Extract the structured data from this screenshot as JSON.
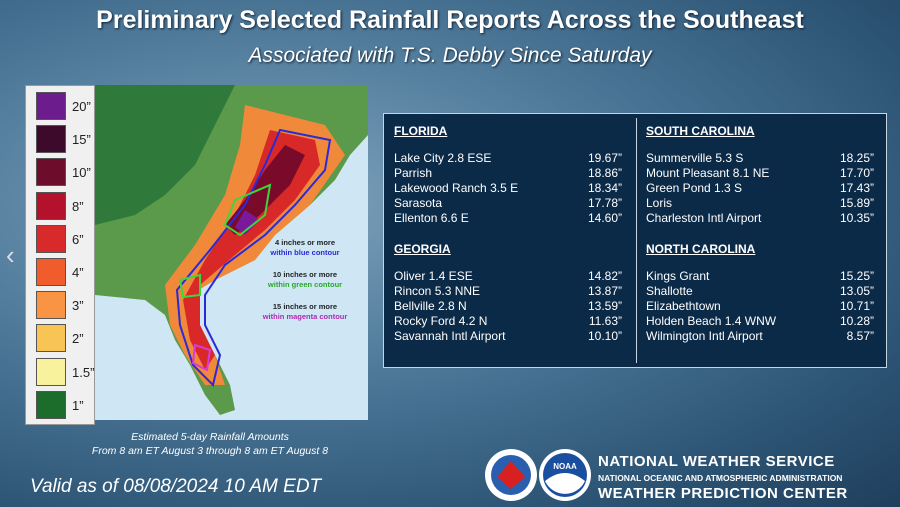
{
  "header": {
    "title": "Preliminary Selected Rainfall Reports Across the Southeast",
    "subtitle": "Associated with T.S. Debby Since Saturday"
  },
  "legend": [
    "20”",
    "15”",
    "10”",
    "8”",
    "6”",
    "4”",
    "3”",
    "2”",
    "1.5”",
    "1”"
  ],
  "map_notes": [
    [
      "4 inches or more",
      "within blue contour"
    ],
    [
      "10 inches or more",
      "within green contour"
    ],
    [
      "15 inches or more",
      "within magenta contour"
    ]
  ],
  "caption": [
    "Estimated 5-day Rainfall Amounts",
    "From 8 am ET August 3 through 8 am ET August 8"
  ],
  "valid": "Valid as of 08/08/2024  10 AM EDT",
  "table": {
    "columns": [
      [
        {
          "heading": "FLORIDA",
          "rows": [
            [
              "Lake City 2.8 ESE",
              "19.67”"
            ],
            [
              "Parrish",
              "18.86”"
            ],
            [
              "Lakewood Ranch 3.5 E",
              "18.34”"
            ],
            [
              "Sarasota",
              "17.78”"
            ],
            [
              "Ellenton 6.6 E",
              "14.60”"
            ]
          ]
        },
        {
          "heading": "GEORGIA",
          "rows": [
            [
              "Oliver 1.4 ESE",
              "14.82”"
            ],
            [
              "Rincon 5.3 NNE",
              "13.87”"
            ],
            [
              "Bellville 2.8 N",
              "13.59”"
            ],
            [
              "Rocky Ford 4.2 N",
              "11.63”"
            ],
            [
              "Savannah Intl Airport",
              "10.10”"
            ]
          ]
        }
      ],
      [
        {
          "heading": "SOUTH CAROLINA",
          "rows": [
            [
              "Summerville 5.3 S",
              "18.25”"
            ],
            [
              "Mount Pleasant 8.1 NE",
              "17.70”"
            ],
            [
              "Green Pond 1.3 S",
              "17.43”"
            ],
            [
              "Loris",
              "15.89”"
            ],
            [
              "Charleston Intl Airport",
              "10.35”"
            ]
          ]
        },
        {
          "heading": "NORTH CAROLINA",
          "rows": [
            [
              "Kings Grant",
              "15.25”"
            ],
            [
              "Shallotte",
              "13.05”"
            ],
            [
              "Elizabethtown",
              "10.71”"
            ],
            [
              "Holden Beach 1.4 WNW",
              "10.28”"
            ],
            [
              "Wilmington Intl Airport",
              "8.57”"
            ]
          ]
        }
      ]
    ]
  },
  "footer": {
    "logo_text": "NOAA",
    "lines": [
      "NATIONAL WEATHER SERVICE",
      "NATIONAL OCEANIC AND ATMOSPHERIC ADMINISTRATION",
      "WEATHER PREDICTION CENTER"
    ]
  }
}
